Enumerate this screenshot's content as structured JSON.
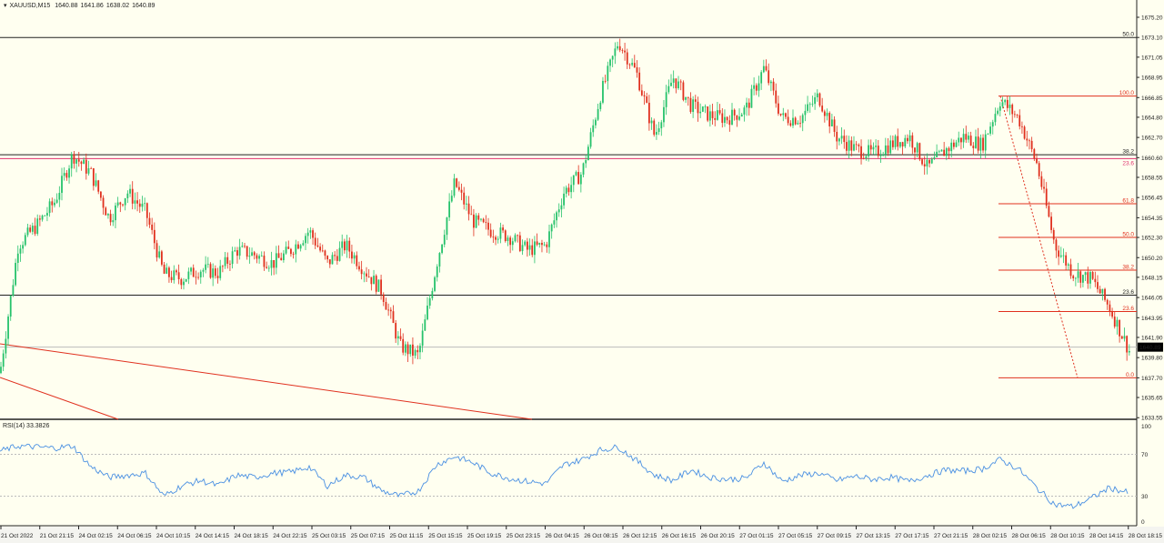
{
  "header": {
    "symbol": "XAUUSD,M15",
    "open": "1640.88",
    "high": "1641.86",
    "low": "1638.02",
    "close": "1640.89"
  },
  "rsi": {
    "label": "RSI(14) 33.3826",
    "levels": [
      "100",
      "70",
      "30",
      "0"
    ]
  },
  "colors": {
    "background": "#fffff0",
    "bull": "#26c26b",
    "bear": "#e0301e",
    "rsi": "#4a90e2",
    "fib": "#e0301e",
    "level": "#222222"
  },
  "chart_data": {
    "type": "candlestick",
    "symbol": "XAUUSD",
    "timeframe": "M15",
    "ylim": [
      1633.55,
      1675.2
    ],
    "price_ticks": [
      "1675.20",
      "1673.10",
      "1671.05",
      "1668.95",
      "1666.85",
      "1664.80",
      "1662.70",
      "1660.60",
      "1658.55",
      "1656.45",
      "1654.35",
      "1652.30",
      "1650.20",
      "1648.15",
      "1646.05",
      "1643.95",
      "1641.90",
      "1639.80",
      "1637.70",
      "1635.65",
      "1633.55"
    ],
    "current_price": "1640.89",
    "time_ticks": [
      "21 Oct 2022",
      "21 Oct 21:15",
      "24 Oct 02:15",
      "24 Oct 06:15",
      "24 Oct 10:15",
      "24 Oct 14:15",
      "24 Oct 18:15",
      "24 Oct 22:15",
      "25 Oct 03:15",
      "25 Oct 07:15",
      "25 Oct 11:15",
      "25 Oct 15:15",
      "25 Oct 19:15",
      "25 Oct 23:15",
      "26 Oct 04:15",
      "26 Oct 08:15",
      "26 Oct 12:15",
      "26 Oct 16:15",
      "26 Oct 20:15",
      "27 Oct 01:15",
      "27 Oct 05:15",
      "27 Oct 09:15",
      "27 Oct 13:15",
      "27 Oct 17:15",
      "27 Oct 21:15",
      "28 Oct 02:15",
      "28 Oct 06:15",
      "28 Oct 10:15",
      "28 Oct 14:15",
      "28 Oct 18:15"
    ],
    "close_path": [
      1638.2,
      1651.5,
      1653.5,
      1656,
      1660.9,
      1659,
      1654.3,
      1657,
      1655,
      1648.5,
      1648,
      1649,
      1648.6,
      1651,
      1650.5,
      1649.6,
      1651,
      1653,
      1649.6,
      1651.5,
      1649,
      1646.7,
      1641,
      1640,
      1649.5,
      1658,
      1654,
      1653,
      1652.4,
      1651,
      1651.5,
      1657,
      1659,
      1667,
      1672.7,
      1669.4,
      1662.8,
      1669,
      1666,
      1665,
      1664.7,
      1665.6,
      1669.9,
      1664.7,
      1664.7,
      1667,
      1662.8,
      1661.5,
      1661,
      1662,
      1662.8,
      1659.5,
      1661.4,
      1662.8,
      1661.9,
      1666.6,
      1664.7,
      1660,
      1651.5,
      1648.6,
      1648,
      1645,
      1640.89
    ],
    "rsi_path": [
      73,
      78,
      77,
      76,
      78,
      58,
      48,
      50,
      52,
      30,
      40,
      45,
      40,
      50,
      48,
      52,
      53,
      58,
      40,
      50,
      48,
      35,
      30,
      35,
      60,
      68,
      62,
      52,
      47,
      44,
      42,
      60,
      65,
      74,
      77,
      64,
      50,
      45,
      55,
      48,
      46,
      47,
      62,
      44,
      50,
      52,
      45,
      49,
      46,
      48,
      44,
      50,
      55,
      54,
      56,
      65,
      56,
      38,
      22,
      20,
      28,
      38,
      33.4
    ],
    "horizontal_levels": [
      {
        "price": 1673.1,
        "label": "50.0",
        "color": "#222222"
      },
      {
        "price": 1660.9,
        "label": "38.2",
        "color": "#222222"
      },
      {
        "price": 1660.5,
        "label": "23.6",
        "color": "#e0306e"
      },
      {
        "price": 1646.3,
        "label": "23.6",
        "color": "#222222"
      }
    ],
    "fibonacci": {
      "high": 1667.0,
      "low": 1637.7,
      "levels": [
        {
          "label": "100.0",
          "price": 1667.0
        },
        {
          "label": "61.8",
          "price": 1655.8
        },
        {
          "label": "50.0",
          "price": 1652.3
        },
        {
          "label": "38.2",
          "price": 1648.9
        },
        {
          "label": "23.6",
          "price": 1644.6
        },
        {
          "label": "0.0",
          "price": 1637.7
        }
      ]
    }
  }
}
